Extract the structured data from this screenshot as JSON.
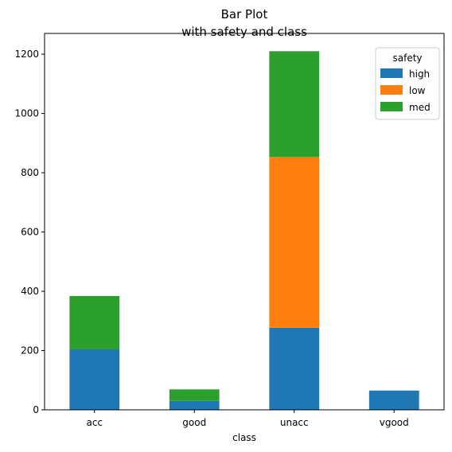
{
  "chart_data": {
    "type": "bar",
    "stacked": true,
    "title": "Bar Plot",
    "subtitle": "with safety and class",
    "xlabel": "class",
    "ylabel": "",
    "categories": [
      "acc",
      "good",
      "unacc",
      "vgood"
    ],
    "series": [
      {
        "name": "high",
        "color": "#1f77b4",
        "values": [
          204,
          30,
          277,
          65
        ]
      },
      {
        "name": "low",
        "color": "#ff7f0e",
        "values": [
          0,
          0,
          576,
          0
        ]
      },
      {
        "name": "med",
        "color": "#2ca02c",
        "values": [
          180,
          39,
          357,
          0
        ]
      }
    ],
    "ylim": [
      0,
      1270
    ],
    "yticks": [
      0,
      200,
      400,
      600,
      800,
      1000,
      1200
    ],
    "legend": {
      "title": "safety",
      "placement": "top-right"
    },
    "grid": false
  }
}
